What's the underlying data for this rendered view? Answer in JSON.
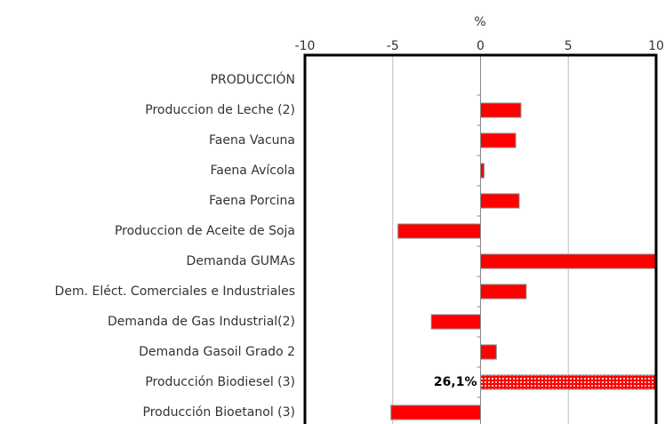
{
  "chart_data": {
    "type": "barh",
    "axis_label": "%",
    "categories": [
      "PRODUCCIÓN",
      "Produccion de Leche (2)",
      "Faena Vacuna ",
      "Faena Avícola ",
      "Faena Porcina ",
      "Produccion de Aceite de Soja",
      "Demanda  GUMAs",
      "Dem. Eléct. Comerciales e Industriales",
      "Demanda de Gas Industrial(2)",
      "Demanda Gasoil Grado 2",
      "Producción Biodiesel (3)",
      "Producción Bioetanol (3)"
    ],
    "values": [
      null,
      2.3,
      2.0,
      0.2,
      2.2,
      -4.7,
      10,
      2.6,
      -2.8,
      0.9,
      26.1,
      -5.1
    ],
    "value_labels": [
      null,
      null,
      null,
      null,
      null,
      null,
      null,
      null,
      null,
      null,
      "26,1%",
      null
    ],
    "patterns": [
      null,
      null,
      null,
      null,
      null,
      null,
      null,
      null,
      null,
      null,
      "dots",
      null
    ],
    "color": "#ff0000",
    "xlim": [
      -10,
      10
    ],
    "xticks": [
      -10,
      -5,
      0,
      5,
      10
    ],
    "grid": true
  }
}
